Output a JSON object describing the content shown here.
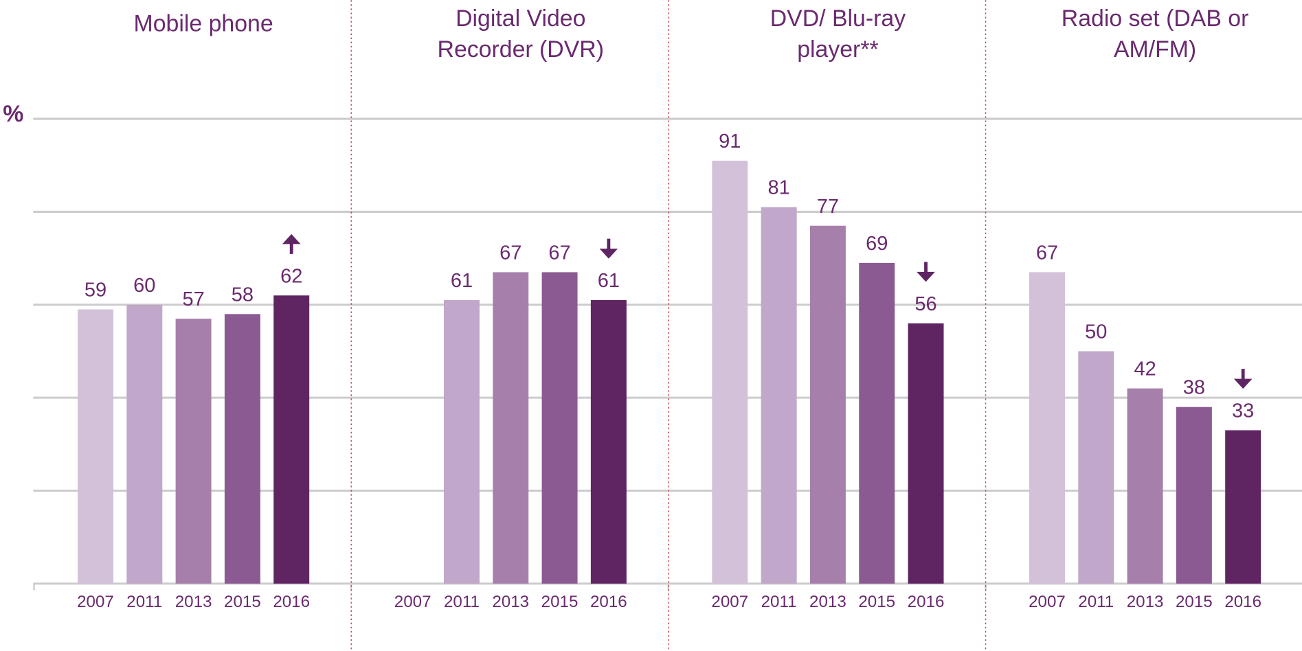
{
  "chart_data": [
    {
      "type": "bar",
      "title": [
        "Mobile phone"
      ],
      "ylabel": "%",
      "categories": [
        "2007",
        "2011",
        "2013",
        "2015",
        "2016"
      ],
      "values": [
        59,
        60,
        57,
        58,
        62
      ],
      "colors": [
        "#d3c1da",
        "#c1a7c9",
        "#a67fab",
        "#8c5a93",
        "#5f2563"
      ],
      "trend": "up",
      "ylim": [
        0,
        100
      ],
      "yticks": [
        0,
        20,
        40,
        60,
        80,
        100
      ],
      "grid": true
    },
    {
      "type": "bar",
      "title": [
        "Digital Video",
        "Recorder (DVR)"
      ],
      "categories": [
        "2007",
        "2011",
        "2013",
        "2015",
        "2016"
      ],
      "values": [
        null,
        61,
        67,
        67,
        61
      ],
      "colors": [
        "#d3c1da",
        "#c1a7c9",
        "#a67fab",
        "#8c5a93",
        "#5f2563"
      ],
      "trend": "down",
      "ylim": [
        0,
        100
      ],
      "yticks": [
        0,
        20,
        40,
        60,
        80,
        100
      ],
      "grid": true
    },
    {
      "type": "bar",
      "title": [
        "DVD/ Blu-ray",
        "player**"
      ],
      "categories": [
        "2007",
        "2011",
        "2013",
        "2015",
        "2016"
      ],
      "values": [
        91,
        81,
        77,
        69,
        56
      ],
      "colors": [
        "#d3c1da",
        "#c1a7c9",
        "#a67fab",
        "#8c5a93",
        "#5f2563"
      ],
      "trend": "down",
      "ylim": [
        0,
        100
      ],
      "yticks": [
        0,
        20,
        40,
        60,
        80,
        100
      ],
      "grid": true
    },
    {
      "type": "bar",
      "title": [
        "Radio set (DAB or",
        "AM/FM)"
      ],
      "categories": [
        "2007",
        "2011",
        "2013",
        "2015",
        "2016"
      ],
      "values": [
        67,
        50,
        42,
        38,
        33
      ],
      "colors": [
        "#d3c1da",
        "#c1a7c9",
        "#a67fab",
        "#8c5a93",
        "#5f2563"
      ],
      "trend": "down",
      "ylim": [
        0,
        100
      ],
      "yticks": [
        0,
        20,
        40,
        60,
        80,
        100
      ],
      "grid": true
    }
  ]
}
